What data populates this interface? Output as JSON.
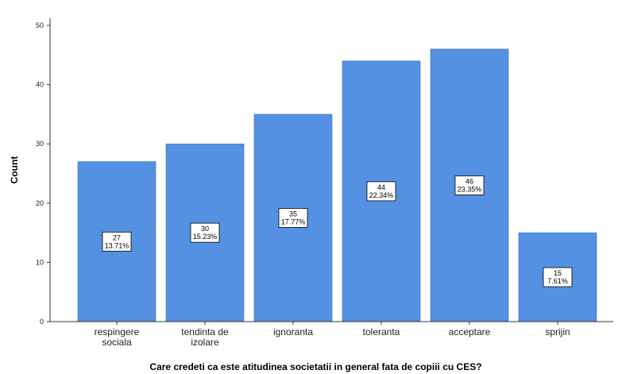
{
  "chart_data": {
    "type": "bar",
    "categories": [
      [
        "respingere",
        "sociala"
      ],
      [
        "tendinta de",
        "izolare"
      ],
      [
        "ignoranta"
      ],
      [
        "toleranta"
      ],
      [
        "acceptare"
      ],
      [
        "sprijin"
      ]
    ],
    "values": [
      27,
      30,
      35,
      44,
      46,
      15
    ],
    "percent_labels": [
      "13.71%",
      "15.23%",
      "17.77%",
      "22.34%",
      "23.35%",
      "7.61%"
    ],
    "xlabel": "Care credeti ca este atitudinea societatii in general fata de copiii cu CES?",
    "ylabel": "Count",
    "ylim": [
      0,
      50
    ],
    "yticks": [
      0,
      10,
      20,
      30,
      40,
      50
    ],
    "grid": false,
    "legend": "none",
    "bar_color": "#5591e3",
    "bar_edge_color": "#3a6bb0"
  }
}
